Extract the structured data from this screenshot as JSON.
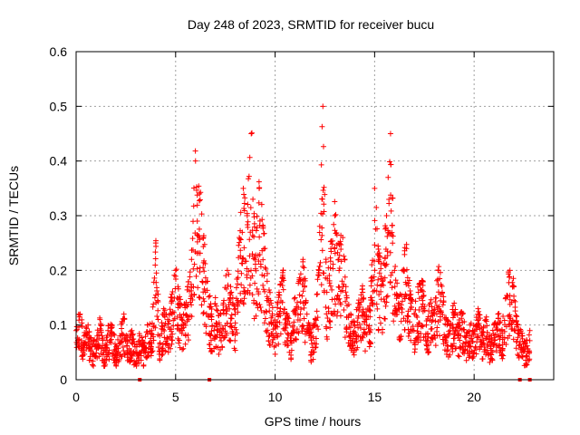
{
  "chart_data": {
    "type": "scatter",
    "title": "Day 248 of 2023, SRMTID for receiver bucu",
    "xlabel": "GPS time / hours",
    "ylabel": "SRMTID / TECUs",
    "xlim": [
      0,
      24
    ],
    "ylim": [
      0,
      0.6
    ],
    "xticks": [
      0,
      5,
      10,
      15,
      20
    ],
    "yticks": [
      0,
      0.1,
      0.2,
      0.3,
      0.4,
      0.5,
      0.6
    ],
    "xtick_labels": [
      "0",
      "5",
      "10",
      "15",
      "20"
    ],
    "ytick_labels": [
      "0",
      "0.1",
      "0.2",
      "0.3",
      "0.4",
      "0.5",
      "0.6"
    ],
    "grid": true,
    "marker": "+",
    "series": [
      {
        "name": "SRMTID",
        "color": "#ff0000",
        "x": [
          0.0,
          0.2,
          0.4,
          0.6,
          0.8,
          1.0,
          1.2,
          1.4,
          1.6,
          1.8,
          2.0,
          2.2,
          2.4,
          2.6,
          2.8,
          3.0,
          3.2,
          3.4,
          3.6,
          3.8,
          4.0,
          4.2,
          4.4,
          4.6,
          4.8,
          5.0,
          5.2,
          5.4,
          5.6,
          5.8,
          6.0,
          6.2,
          6.4,
          6.6,
          6.8,
          7.0,
          7.2,
          7.4,
          7.6,
          7.8,
          8.0,
          8.2,
          8.4,
          8.6,
          8.8,
          9.0,
          9.2,
          9.4,
          9.6,
          9.8,
          10.0,
          10.2,
          10.4,
          10.6,
          10.8,
          11.0,
          11.2,
          11.4,
          11.6,
          11.8,
          12.0,
          12.2,
          12.4,
          12.6,
          12.8,
          13.0,
          13.2,
          13.4,
          13.6,
          13.8,
          14.0,
          14.2,
          14.4,
          14.6,
          14.8,
          15.0,
          15.2,
          15.4,
          15.6,
          15.8,
          16.0,
          16.2,
          16.4,
          16.6,
          16.8,
          17.0,
          17.2,
          17.4,
          17.6,
          17.8,
          18.0,
          18.2,
          18.4,
          18.6,
          18.8,
          19.0,
          19.2,
          19.4,
          19.6,
          19.8,
          20.0,
          20.2,
          20.4,
          20.6,
          20.8,
          21.0,
          21.2,
          21.4,
          21.6,
          21.8,
          22.0,
          22.2,
          22.4,
          22.6,
          22.8
        ],
        "y": [
          0.09,
          0.12,
          0.08,
          0.1,
          0.06,
          0.07,
          0.11,
          0.05,
          0.09,
          0.1,
          0.06,
          0.08,
          0.12,
          0.07,
          0.09,
          0.05,
          0.08,
          0.06,
          0.1,
          0.09,
          0.25,
          0.08,
          0.13,
          0.11,
          0.15,
          0.2,
          0.14,
          0.12,
          0.17,
          0.22,
          0.4,
          0.34,
          0.26,
          0.18,
          0.12,
          0.15,
          0.1,
          0.14,
          0.2,
          0.16,
          0.13,
          0.26,
          0.35,
          0.3,
          0.45,
          0.22,
          0.35,
          0.28,
          0.18,
          0.14,
          0.1,
          0.16,
          0.2,
          0.12,
          0.08,
          0.15,
          0.18,
          0.22,
          0.12,
          0.08,
          0.1,
          0.2,
          0.5,
          0.16,
          0.24,
          0.3,
          0.22,
          0.26,
          0.15,
          0.12,
          0.1,
          0.14,
          0.16,
          0.11,
          0.15,
          0.35,
          0.22,
          0.18,
          0.3,
          0.45,
          0.2,
          0.14,
          0.2,
          0.24,
          0.15,
          0.12,
          0.16,
          0.18,
          0.1,
          0.14,
          0.12,
          0.2,
          0.16,
          0.11,
          0.09,
          0.14,
          0.1,
          0.12,
          0.08,
          0.1,
          0.09,
          0.13,
          0.08,
          0.11,
          0.07,
          0.1,
          0.12,
          0.09,
          0.15,
          0.2,
          0.17,
          0.1,
          0.08,
          0.06,
          0.09
        ]
      }
    ],
    "zero_markers_x": [
      3.2,
      6.7,
      22.3,
      22.8
    ]
  }
}
